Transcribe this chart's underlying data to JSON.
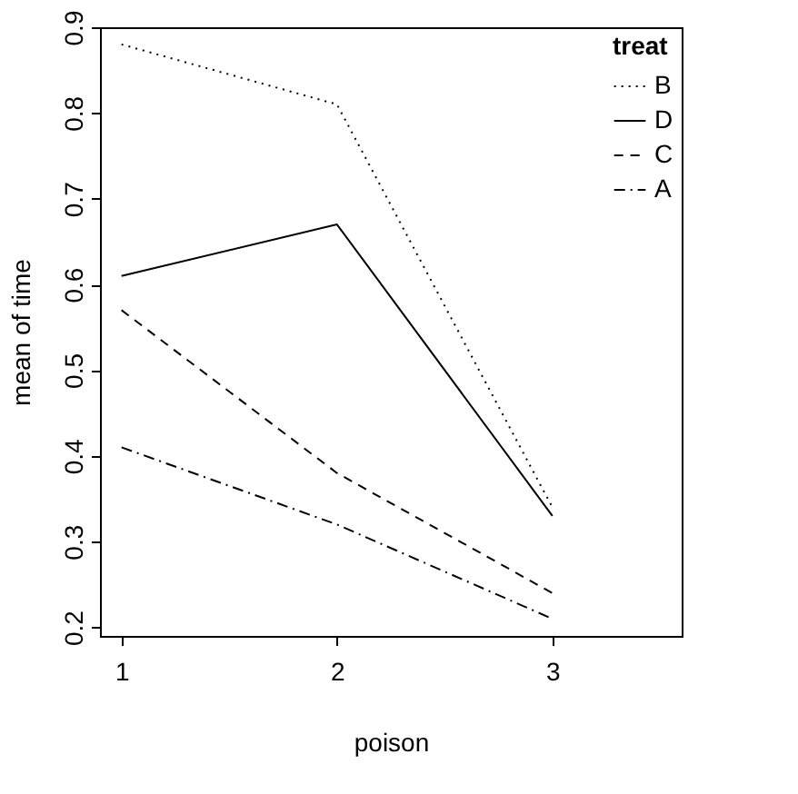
{
  "chart_data": {
    "type": "line",
    "xlabel": "poison",
    "ylabel": "mean of  time",
    "legend_title": "treat",
    "x": [
      1,
      2,
      3
    ],
    "xlim": [
      0.9,
      3.6
    ],
    "xticks": [
      1,
      2,
      3
    ],
    "ylim": [
      0.19,
      0.9
    ],
    "yticks": [
      0.2,
      0.3,
      0.4,
      0.5,
      0.6,
      0.7,
      0.8,
      0.9
    ],
    "grid": false,
    "legend": "top right",
    "marker": "none",
    "series": [
      {
        "name": "B",
        "color": "#000000",
        "line_style": "dotted",
        "values": [
          0.88,
          0.81,
          0.34
        ]
      },
      {
        "name": "D",
        "color": "#000000",
        "line_style": "solid",
        "values": [
          0.61,
          0.67,
          0.33
        ]
      },
      {
        "name": "C",
        "color": "#000000",
        "line_style": "dashed",
        "values": [
          0.57,
          0.38,
          0.24
        ]
      },
      {
        "name": "A",
        "color": "#000000",
        "line_style": "dashdot",
        "values": [
          0.41,
          0.32,
          0.21
        ]
      }
    ]
  }
}
